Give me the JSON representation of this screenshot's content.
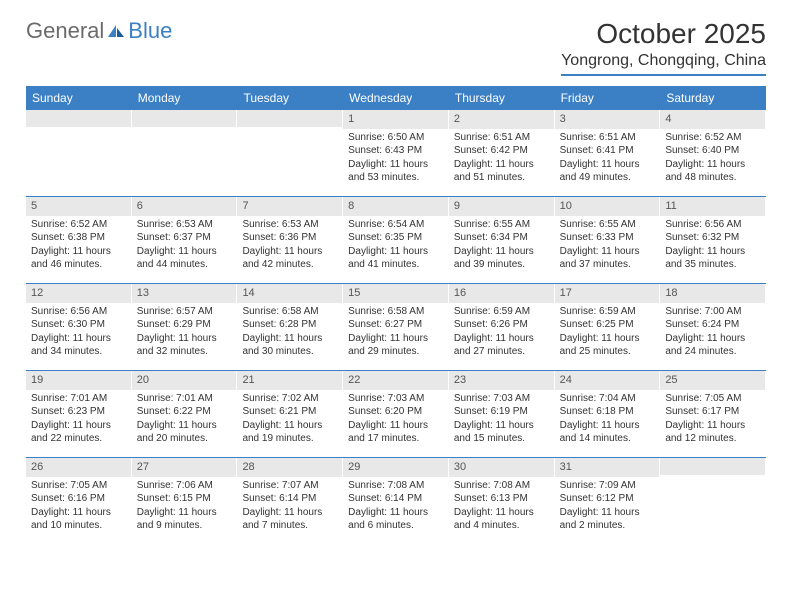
{
  "brand": {
    "part1": "General",
    "part2": "Blue"
  },
  "title": "October 2025",
  "location": "Yongrong, Chongqing, China",
  "colors": {
    "header_bg": "#3b7fc4",
    "header_text": "#ffffff",
    "daynum_bg": "#e8e8e8",
    "border": "#3b7fc4",
    "text": "#333333",
    "logo_gray": "#6b6b6b",
    "logo_blue": "#3b7fc4",
    "background": "#ffffff"
  },
  "typography": {
    "title_fontsize": 28,
    "location_fontsize": 16,
    "weekday_fontsize": 12,
    "daynum_fontsize": 11,
    "body_fontsize": 10
  },
  "weekdays": [
    "Sunday",
    "Monday",
    "Tuesday",
    "Wednesday",
    "Thursday",
    "Friday",
    "Saturday"
  ],
  "weeks": [
    [
      {
        "n": "",
        "sr": "",
        "ss": "",
        "dl": ""
      },
      {
        "n": "",
        "sr": "",
        "ss": "",
        "dl": ""
      },
      {
        "n": "",
        "sr": "",
        "ss": "",
        "dl": ""
      },
      {
        "n": "1",
        "sr": "6:50 AM",
        "ss": "6:43 PM",
        "dl": "11 hours and 53 minutes."
      },
      {
        "n": "2",
        "sr": "6:51 AM",
        "ss": "6:42 PM",
        "dl": "11 hours and 51 minutes."
      },
      {
        "n": "3",
        "sr": "6:51 AM",
        "ss": "6:41 PM",
        "dl": "11 hours and 49 minutes."
      },
      {
        "n": "4",
        "sr": "6:52 AM",
        "ss": "6:40 PM",
        "dl": "11 hours and 48 minutes."
      }
    ],
    [
      {
        "n": "5",
        "sr": "6:52 AM",
        "ss": "6:38 PM",
        "dl": "11 hours and 46 minutes."
      },
      {
        "n": "6",
        "sr": "6:53 AM",
        "ss": "6:37 PM",
        "dl": "11 hours and 44 minutes."
      },
      {
        "n": "7",
        "sr": "6:53 AM",
        "ss": "6:36 PM",
        "dl": "11 hours and 42 minutes."
      },
      {
        "n": "8",
        "sr": "6:54 AM",
        "ss": "6:35 PM",
        "dl": "11 hours and 41 minutes."
      },
      {
        "n": "9",
        "sr": "6:55 AM",
        "ss": "6:34 PM",
        "dl": "11 hours and 39 minutes."
      },
      {
        "n": "10",
        "sr": "6:55 AM",
        "ss": "6:33 PM",
        "dl": "11 hours and 37 minutes."
      },
      {
        "n": "11",
        "sr": "6:56 AM",
        "ss": "6:32 PM",
        "dl": "11 hours and 35 minutes."
      }
    ],
    [
      {
        "n": "12",
        "sr": "6:56 AM",
        "ss": "6:30 PM",
        "dl": "11 hours and 34 minutes."
      },
      {
        "n": "13",
        "sr": "6:57 AM",
        "ss": "6:29 PM",
        "dl": "11 hours and 32 minutes."
      },
      {
        "n": "14",
        "sr": "6:58 AM",
        "ss": "6:28 PM",
        "dl": "11 hours and 30 minutes."
      },
      {
        "n": "15",
        "sr": "6:58 AM",
        "ss": "6:27 PM",
        "dl": "11 hours and 29 minutes."
      },
      {
        "n": "16",
        "sr": "6:59 AM",
        "ss": "6:26 PM",
        "dl": "11 hours and 27 minutes."
      },
      {
        "n": "17",
        "sr": "6:59 AM",
        "ss": "6:25 PM",
        "dl": "11 hours and 25 minutes."
      },
      {
        "n": "18",
        "sr": "7:00 AM",
        "ss": "6:24 PM",
        "dl": "11 hours and 24 minutes."
      }
    ],
    [
      {
        "n": "19",
        "sr": "7:01 AM",
        "ss": "6:23 PM",
        "dl": "11 hours and 22 minutes."
      },
      {
        "n": "20",
        "sr": "7:01 AM",
        "ss": "6:22 PM",
        "dl": "11 hours and 20 minutes."
      },
      {
        "n": "21",
        "sr": "7:02 AM",
        "ss": "6:21 PM",
        "dl": "11 hours and 19 minutes."
      },
      {
        "n": "22",
        "sr": "7:03 AM",
        "ss": "6:20 PM",
        "dl": "11 hours and 17 minutes."
      },
      {
        "n": "23",
        "sr": "7:03 AM",
        "ss": "6:19 PM",
        "dl": "11 hours and 15 minutes."
      },
      {
        "n": "24",
        "sr": "7:04 AM",
        "ss": "6:18 PM",
        "dl": "11 hours and 14 minutes."
      },
      {
        "n": "25",
        "sr": "7:05 AM",
        "ss": "6:17 PM",
        "dl": "11 hours and 12 minutes."
      }
    ],
    [
      {
        "n": "26",
        "sr": "7:05 AM",
        "ss": "6:16 PM",
        "dl": "11 hours and 10 minutes."
      },
      {
        "n": "27",
        "sr": "7:06 AM",
        "ss": "6:15 PM",
        "dl": "11 hours and 9 minutes."
      },
      {
        "n": "28",
        "sr": "7:07 AM",
        "ss": "6:14 PM",
        "dl": "11 hours and 7 minutes."
      },
      {
        "n": "29",
        "sr": "7:08 AM",
        "ss": "6:14 PM",
        "dl": "11 hours and 6 minutes."
      },
      {
        "n": "30",
        "sr": "7:08 AM",
        "ss": "6:13 PM",
        "dl": "11 hours and 4 minutes."
      },
      {
        "n": "31",
        "sr": "7:09 AM",
        "ss": "6:12 PM",
        "dl": "11 hours and 2 minutes."
      },
      {
        "n": "",
        "sr": "",
        "ss": "",
        "dl": ""
      }
    ]
  ],
  "labels": {
    "sunrise": "Sunrise:",
    "sunset": "Sunset:",
    "daylight": "Daylight:"
  }
}
